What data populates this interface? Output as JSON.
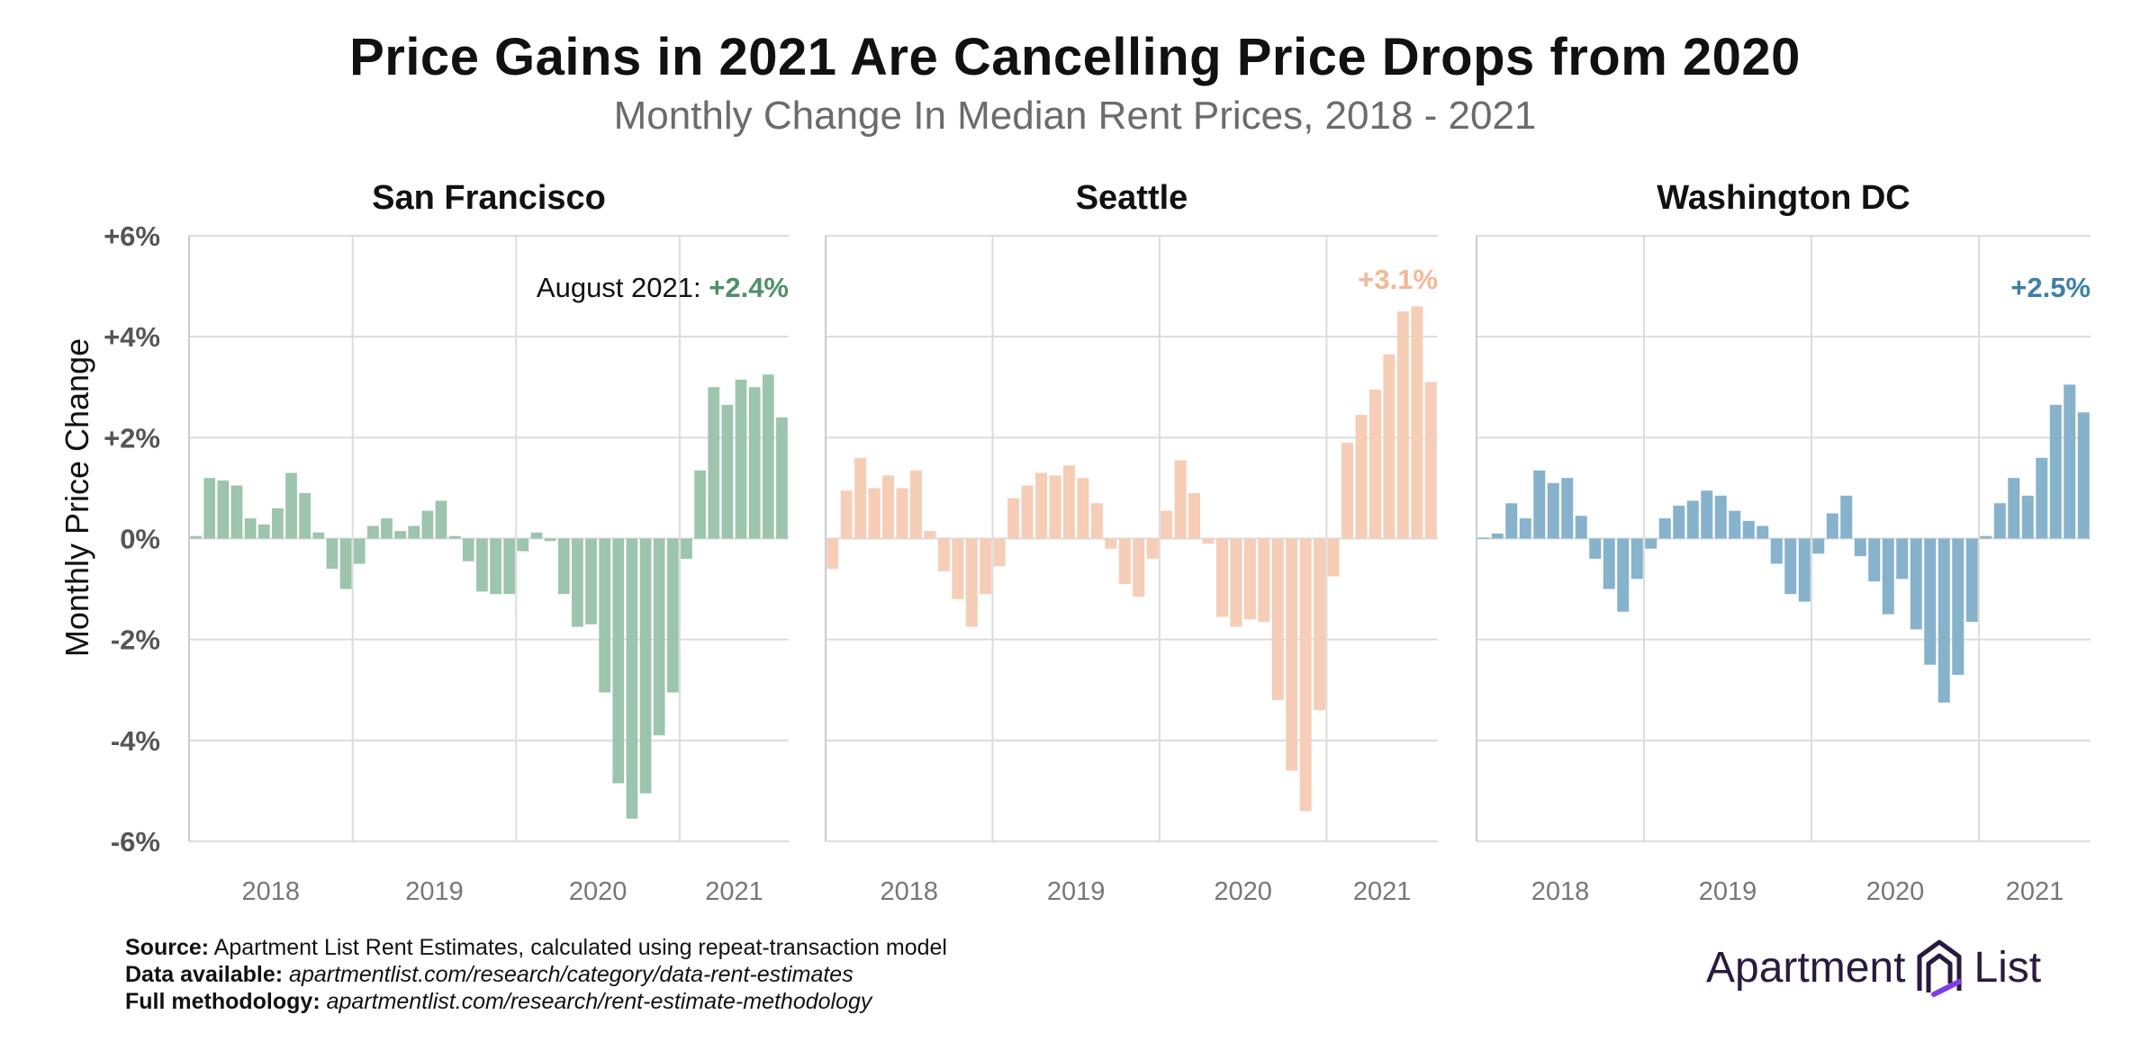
{
  "header": {
    "title": "Price Gains in 2021 Are Cancelling Price Drops from 2020",
    "subtitle": "Monthly Change In Median Rent Prices, 2018 - 2021"
  },
  "footer": {
    "source_label": "Source:",
    "source_text": "Apartment List Rent Estimates, calculated using repeat-transaction model",
    "data_label": "Data available:",
    "data_text": "apartmentlist.com/research/category/data-rent-estimates",
    "method_label": "Full methodology:",
    "method_text": "apartmentlist.com/research/rent-estimate-methodology"
  },
  "logo": {
    "text_left": "Apartment",
    "text_right": "List",
    "colors": [
      "#2a1a3e",
      "#7b3fe4"
    ]
  },
  "chart_data": {
    "type": "bar",
    "ylabel": "Monthly Price Change",
    "ylim": [
      -6,
      6
    ],
    "yticks": [
      6,
      4,
      2,
      0,
      -2,
      -4,
      -6
    ],
    "ytick_labels": [
      "+6%",
      "+4%",
      "+2%",
      "0%",
      "-2%",
      "-4%",
      "-6%"
    ],
    "xtick_labels": [
      "2018",
      "2019",
      "2020",
      "2021"
    ],
    "grid": true,
    "months_start": "2018-01",
    "months_end": "2021-08",
    "panels": [
      {
        "name": "San Francisco",
        "color": "#9dc4ac",
        "annotation_prefix": "August 2021: ",
        "annotation_value": "+2.4%",
        "annotation_color": "#4e8f68",
        "values": [
          0.05,
          1.2,
          1.15,
          1.05,
          0.4,
          0.28,
          0.6,
          1.3,
          0.9,
          0.12,
          -0.6,
          -1.0,
          -0.5,
          0.25,
          0.4,
          0.15,
          0.25,
          0.55,
          0.75,
          0.05,
          -0.45,
          -1.05,
          -1.1,
          -1.1,
          -0.25,
          0.12,
          -0.05,
          -1.1,
          -1.75,
          -1.7,
          -3.05,
          -4.85,
          -5.55,
          -5.05,
          -3.9,
          -3.05,
          -0.4,
          1.35,
          3.0,
          2.65,
          3.15,
          3.0,
          3.25,
          2.4
        ]
      },
      {
        "name": "Seattle",
        "color": "#f6cdb6",
        "annotation_prefix": "",
        "annotation_value": "+3.1%",
        "annotation_color": "#f3b896",
        "values": [
          -0.6,
          0.95,
          1.6,
          1.0,
          1.25,
          1.0,
          1.35,
          0.15,
          -0.65,
          -1.2,
          -1.75,
          -1.1,
          -0.55,
          0.8,
          1.05,
          1.3,
          1.25,
          1.45,
          1.2,
          0.7,
          -0.2,
          -0.9,
          -1.15,
          -0.4,
          0.55,
          1.55,
          0.9,
          -0.1,
          -1.55,
          -1.75,
          -1.6,
          -1.65,
          -3.2,
          -4.6,
          -5.4,
          -3.4,
          -0.75,
          1.9,
          2.45,
          2.95,
          3.65,
          4.5,
          4.6,
          3.1
        ]
      },
      {
        "name": "Washington DC",
        "color": "#87b2cc",
        "annotation_prefix": "",
        "annotation_value": "+2.5%",
        "annotation_color": "#3f7fa8",
        "values": [
          0.02,
          0.1,
          0.7,
          0.4,
          1.35,
          1.1,
          1.2,
          0.45,
          -0.4,
          -1.0,
          -1.45,
          -0.8,
          -0.2,
          0.4,
          0.65,
          0.75,
          0.95,
          0.85,
          0.55,
          0.35,
          0.25,
          -0.5,
          -1.1,
          -1.25,
          -0.3,
          0.5,
          0.85,
          -0.35,
          -0.85,
          -1.5,
          -0.8,
          -1.8,
          -2.5,
          -3.25,
          -2.7,
          -1.65,
          0.05,
          0.7,
          1.2,
          0.85,
          1.6,
          2.65,
          3.05,
          2.5
        ]
      }
    ]
  }
}
